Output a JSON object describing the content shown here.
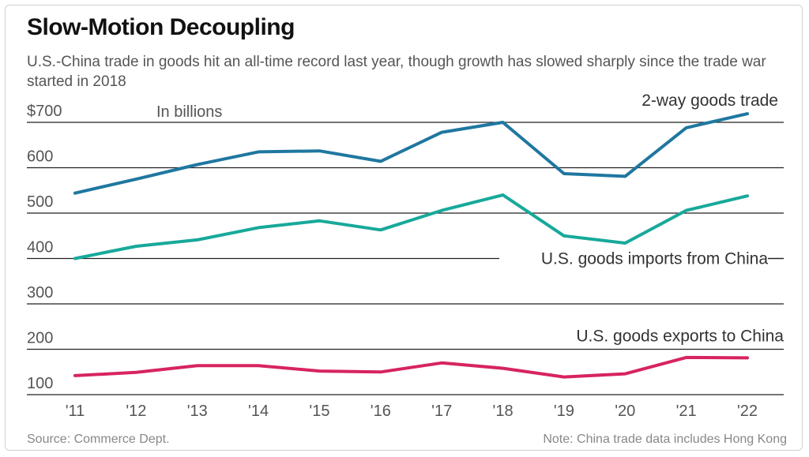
{
  "chart_data": {
    "type": "line",
    "title": "Slow-Motion Decoupling",
    "subtitle": "U.S.-China trade in goods hit an all-time record last year, though growth has slowed sharply since the trade war started in 2018",
    "unit_note": "In billions",
    "categories": [
      "'11",
      "'12",
      "'13",
      "'14",
      "'15",
      "'16",
      "'17",
      "'18",
      "'19",
      "'20",
      "'21",
      "'22"
    ],
    "ylim": [
      100,
      700
    ],
    "yticks": [
      100,
      200,
      300,
      400,
      500,
      600,
      700
    ],
    "ytick_labels": [
      "100",
      "200",
      "300",
      "400",
      "500",
      "600",
      "$700"
    ],
    "grid": true,
    "series": [
      {
        "name": "2-way goods trade",
        "color": "#1f77a0",
        "values": [
          544,
          575,
          607,
          635,
          637,
          614,
          678,
          700,
          587,
          581,
          688,
          719
        ]
      },
      {
        "name": "U.S. goods imports from China",
        "color": "#17a99a",
        "values": [
          400,
          427,
          441,
          468,
          483,
          463,
          506,
          540,
          450,
          434,
          506,
          538
        ]
      },
      {
        "name": "U.S. goods exports to China",
        "color": "#d7245e",
        "values": [
          142,
          149,
          164,
          164,
          152,
          150,
          170,
          158,
          139,
          146,
          182,
          181
        ]
      }
    ]
  },
  "footer": {
    "source": "Source: Commerce Dept.",
    "note": "Note: China trade data includes Hong Kong"
  }
}
